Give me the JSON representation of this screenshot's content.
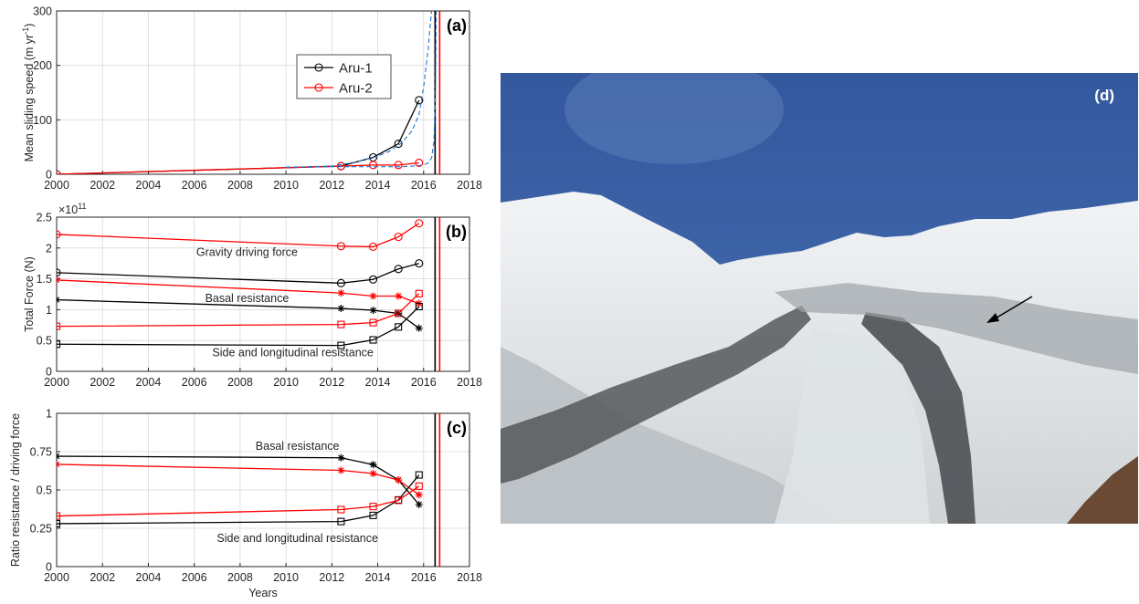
{
  "chart_data": [
    {
      "type": "line",
      "panel_label": "(a)",
      "ylabel": "Mean sliding speed (m yr",
      "ylabel_sup": "-1",
      "ylabel_close": ")",
      "xlim": [
        2000,
        2018
      ],
      "ylim": [
        0,
        300
      ],
      "xticks": [
        "2000",
        "2002",
        "2004",
        "2006",
        "2008",
        "2010",
        "2012",
        "2014",
        "2016",
        "2018"
      ],
      "yticks": [
        "0",
        "100",
        "200",
        "300"
      ],
      "legend_placement": "inside-upper-right",
      "series": [
        {
          "name": "Aru-1",
          "color": "#000000",
          "marker": "circle",
          "x": [
            2000,
            2012.4,
            2013.8,
            2014.9,
            2015.8
          ],
          "y": [
            0,
            15,
            31,
            56,
            136
          ]
        },
        {
          "name": "Aru-2",
          "color": "#ff0000",
          "marker": "circle",
          "x": [
            2000,
            2012.4,
            2013.8,
            2014.9,
            2015.8
          ],
          "y": [
            0,
            15,
            17,
            17,
            21
          ]
        },
        {
          "style": "dashed",
          "color": "#1f77d4",
          "x": [
            2010,
            2012,
            2013,
            2014,
            2014.5,
            2015,
            2015.5,
            2015.8,
            2016.0,
            2016.2,
            2016.3,
            2016.35
          ],
          "y": [
            13,
            15,
            22,
            33,
            42,
            56,
            80,
            110,
            160,
            230,
            280,
            300
          ]
        },
        {
          "style": "dashed",
          "color": "#1f77d4",
          "x": [
            2010,
            2012,
            2014,
            2015,
            2015.5,
            2016,
            2016.2,
            2016.35,
            2016.45,
            2016.52,
            2016.55
          ],
          "y": [
            13,
            14,
            14,
            14,
            15,
            17,
            21,
            30,
            60,
            150,
            300
          ]
        }
      ],
      "vlines": [
        {
          "x": 2016.5,
          "color": "#000000"
        },
        {
          "x": 2016.7,
          "color": "#ff0000"
        }
      ]
    },
    {
      "type": "line",
      "panel_label": "(b)",
      "ylabel": "Total Force (N)",
      "exponent_base": "×10",
      "exponent": "11",
      "xlim": [
        2000,
        2018
      ],
      "ylim": [
        0,
        2.5
      ],
      "xticks": [
        "2000",
        "2002",
        "2004",
        "2006",
        "2008",
        "2010",
        "2012",
        "2014",
        "2016",
        "2018"
      ],
      "yticks": [
        "0",
        "0.5",
        "1",
        "1.5",
        "2",
        "2.5"
      ],
      "annotations": [
        {
          "text": "Gravity driving force",
          "x": 2008.3,
          "y": 1.93
        },
        {
          "text": "Basal resistance",
          "x": 2008.3,
          "y": 1.18
        },
        {
          "text": "Side and longitudinal resistance",
          "x": 2010.3,
          "y": 0.3
        }
      ],
      "series": [
        {
          "label": "Aru-2 gravity driving force",
          "color": "#ff0000",
          "marker": "circle",
          "x": [
            2000,
            2012.4,
            2013.8,
            2014.9,
            2015.8
          ],
          "y": [
            2.22,
            2.03,
            2.02,
            2.18,
            2.4
          ]
        },
        {
          "label": "Aru-1 gravity driving force",
          "color": "#000000",
          "marker": "circle",
          "x": [
            2000,
            2012.4,
            2013.8,
            2014.9,
            2015.8
          ],
          "y": [
            1.6,
            1.43,
            1.49,
            1.66,
            1.75
          ]
        },
        {
          "label": "Aru-2 basal resistance",
          "color": "#ff0000",
          "marker": "asterisk",
          "x": [
            2000,
            2012.4,
            2013.8,
            2014.9,
            2015.8
          ],
          "y": [
            1.48,
            1.27,
            1.22,
            1.22,
            1.1
          ]
        },
        {
          "label": "Aru-1 basal resistance",
          "color": "#000000",
          "marker": "asterisk",
          "x": [
            2000,
            2012.4,
            2013.8,
            2014.9,
            2015.8
          ],
          "y": [
            1.16,
            1.02,
            0.99,
            0.94,
            0.7
          ]
        },
        {
          "label": "Aru-2 side and longitudinal resistance",
          "color": "#ff0000",
          "marker": "square",
          "x": [
            2000,
            2012.4,
            2013.8,
            2014.9,
            2015.8
          ],
          "y": [
            0.73,
            0.76,
            0.79,
            0.94,
            1.26
          ]
        },
        {
          "label": "Aru-1 side and longitudinal resistance",
          "color": "#000000",
          "marker": "square",
          "x": [
            2000,
            2012.4,
            2013.8,
            2014.9,
            2015.8
          ],
          "y": [
            0.44,
            0.42,
            0.51,
            0.72,
            1.05
          ]
        }
      ],
      "vlines": [
        {
          "x": 2016.5,
          "color": "#000000"
        },
        {
          "x": 2016.7,
          "color": "#ff0000"
        }
      ]
    },
    {
      "type": "line",
      "panel_label": "(c)",
      "ylabel": "Ratio resistance / driving force",
      "xlabel": "Years",
      "xlim": [
        2000,
        2018
      ],
      "ylim": [
        0,
        1
      ],
      "xticks": [
        "2000",
        "2002",
        "2004",
        "2006",
        "2008",
        "2010",
        "2012",
        "2014",
        "2016",
        "2018"
      ],
      "yticks": [
        "0",
        "0.25",
        "0.5",
        "0.75",
        "1"
      ],
      "annotations": [
        {
          "text": "Basal resistance",
          "x": 2010.5,
          "y": 0.785
        },
        {
          "text": "Side and longitudinal resistance",
          "x": 2010.5,
          "y": 0.185
        }
      ],
      "series": [
        {
          "label": "Aru-1 basal resistance",
          "color": "#000000",
          "marker": "asterisk",
          "x": [
            2000,
            2012.4,
            2013.8,
            2014.9,
            2015.8
          ],
          "y": [
            0.72,
            0.71,
            0.665,
            0.565,
            0.405
          ]
        },
        {
          "label": "Aru-2 basal resistance",
          "color": "#ff0000",
          "marker": "asterisk",
          "x": [
            2000,
            2012.4,
            2013.8,
            2014.9,
            2015.8
          ],
          "y": [
            0.667,
            0.628,
            0.607,
            0.565,
            0.468
          ]
        },
        {
          "label": "Aru-1 side and longitudinal resistance",
          "color": "#000000",
          "marker": "square",
          "x": [
            2000,
            2012.4,
            2013.8,
            2014.9,
            2015.8
          ],
          "y": [
            0.28,
            0.294,
            0.334,
            0.435,
            0.598
          ]
        },
        {
          "label": "Aru-2 side and longitudinal resistance",
          "color": "#ff0000",
          "marker": "square",
          "x": [
            2000,
            2012.4,
            2013.8,
            2014.9,
            2015.8
          ],
          "y": [
            0.33,
            0.372,
            0.392,
            0.432,
            0.525
          ]
        }
      ],
      "vlines": [
        {
          "x": 2016.5,
          "color": "#000000"
        },
        {
          "x": 2016.7,
          "color": "#ff0000"
        }
      ]
    }
  ],
  "photo": {
    "label": "(d)",
    "sky_color": "#3e64a8",
    "snow_color": "#e8ecef",
    "debris_color": "#6a6c6e"
  }
}
